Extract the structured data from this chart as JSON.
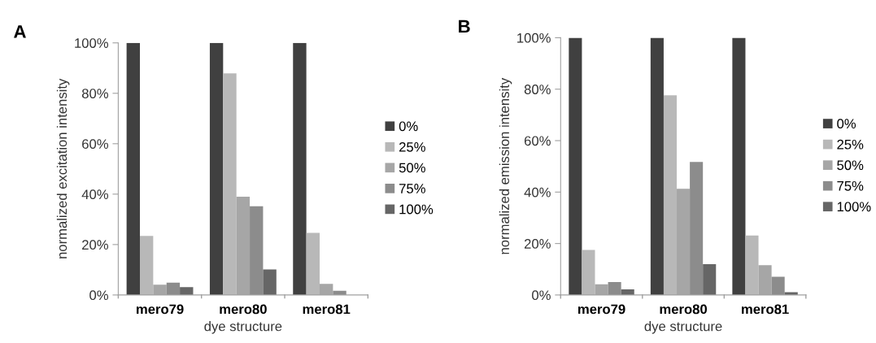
{
  "chart_data": [
    {
      "type": "bar",
      "annotations": [
        "A"
      ],
      "xlabel": "dye structure",
      "ylabel": "normalized excitation intensity",
      "categories": [
        "mero79",
        "mero80",
        "mero81"
      ],
      "legend": "right",
      "ylim": [
        0,
        100
      ],
      "yticks": [
        {
          "value": 0,
          "label": "0%"
        },
        {
          "value": 20,
          "label": "20%"
        },
        {
          "value": 40,
          "label": "40%"
        },
        {
          "value": 60,
          "label": "60%"
        },
        {
          "value": 80,
          "label": "80%"
        },
        {
          "value": 100,
          "label": "100%"
        }
      ],
      "grid": false,
      "series": [
        {
          "name": "0%",
          "color": "#404040",
          "values": [
            100,
            100,
            100
          ]
        },
        {
          "name": "25%",
          "color": "#b8b8b8",
          "values": [
            23.4,
            87.9,
            24.6
          ]
        },
        {
          "name": "50%",
          "color": "#a6a6a6",
          "values": [
            4.1,
            39,
            4.4
          ]
        },
        {
          "name": "75%",
          "color": "#8c8c8c",
          "values": [
            4.9,
            35.2,
            1.7
          ]
        },
        {
          "name": "100%",
          "color": "#666666",
          "values": [
            3.1,
            10.1,
            0
          ]
        }
      ]
    },
    {
      "type": "bar",
      "annotations": [
        "B"
      ],
      "xlabel": "dye structure",
      "ylabel": "normalized emission intensity",
      "categories": [
        "mero79",
        "mero80",
        "mero81"
      ],
      "legend": "right",
      "ylim": [
        0,
        100
      ],
      "yticks": [
        {
          "value": 0,
          "label": "0%"
        },
        {
          "value": 20,
          "label": "20%"
        },
        {
          "value": 40,
          "label": "40%"
        },
        {
          "value": 60,
          "label": "60%"
        },
        {
          "value": 80,
          "label": "80%"
        },
        {
          "value": 100,
          "label": "100%"
        }
      ],
      "grid": false,
      "series": [
        {
          "name": "0%",
          "color": "#404040",
          "values": [
            100,
            100,
            100
          ]
        },
        {
          "name": "25%",
          "color": "#b8b8b8",
          "values": [
            17.5,
            77.6,
            23.1
          ]
        },
        {
          "name": "50%",
          "color": "#a6a6a6",
          "values": [
            4.2,
            41.3,
            11.6
          ]
        },
        {
          "name": "75%",
          "color": "#8c8c8c",
          "values": [
            5.0,
            51.7,
            7.1
          ]
        },
        {
          "name": "100%",
          "color": "#666666",
          "values": [
            2.2,
            12.0,
            1.1
          ]
        }
      ]
    }
  ]
}
